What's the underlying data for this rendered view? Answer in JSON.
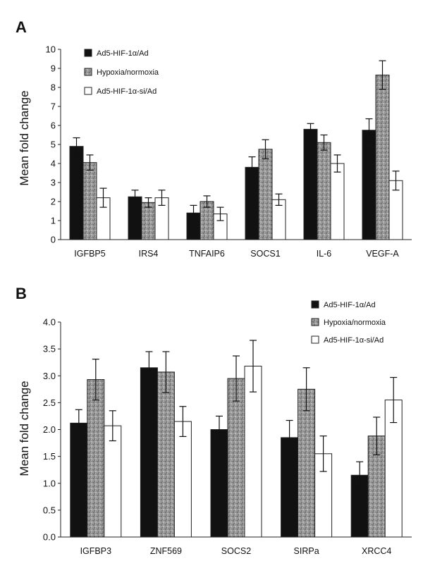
{
  "chart_data": [
    {
      "type": "bar",
      "panel_label": "A",
      "ylabel": "Mean fold change",
      "ylim": [
        0,
        10
      ],
      "yticks": [
        "0",
        "1",
        "2",
        "3",
        "4",
        "5",
        "6",
        "7",
        "8",
        "9",
        "10"
      ],
      "categories": [
        "IGFBP5",
        "IRS4",
        "TNFAIP6",
        "SOCS1",
        "IL-6",
        "VEGF-A"
      ],
      "legend_position": "top-left",
      "series": [
        {
          "name": "Ad5-HIF-1α/Ad",
          "color": "#111111",
          "pattern": "solid",
          "values": [
            4.9,
            2.25,
            1.4,
            3.8,
            5.8,
            5.75
          ],
          "errors": [
            0.45,
            0.35,
            0.4,
            0.55,
            0.3,
            0.6
          ]
        },
        {
          "name": "Hypoxia/normoxia",
          "color": "#8a8a8a",
          "pattern": "speckled",
          "values": [
            4.05,
            1.95,
            2.0,
            4.75,
            5.1,
            8.65
          ],
          "errors": [
            0.4,
            0.25,
            0.3,
            0.5,
            0.4,
            0.75
          ]
        },
        {
          "name": "Ad5-HIF-1α-si/Ad",
          "color": "#ffffff",
          "pattern": "solid",
          "values": [
            2.2,
            2.2,
            1.35,
            2.1,
            4.0,
            3.1
          ],
          "errors": [
            0.5,
            0.4,
            0.35,
            0.3,
            0.45,
            0.5
          ]
        }
      ]
    },
    {
      "type": "bar",
      "panel_label": "B",
      "ylabel": "Mean fold change",
      "ylim": [
        0,
        4
      ],
      "yticks": [
        "0.0",
        "0.5",
        "1.0",
        "1.5",
        "2.0",
        "2.5",
        "3.0",
        "3.5",
        "4.0"
      ],
      "categories": [
        "IGFBP3",
        "ZNF569",
        "SOCS2",
        "SIRPa",
        "XRCC4"
      ],
      "legend_position": "top-right",
      "series": [
        {
          "name": "Ad5-HIF-1α/Ad",
          "color": "#111111",
          "pattern": "solid",
          "values": [
            2.12,
            3.15,
            2.0,
            1.85,
            1.15
          ],
          "errors": [
            0.25,
            0.3,
            0.25,
            0.32,
            0.25
          ]
        },
        {
          "name": "Hypoxia/normoxia",
          "color": "#8a8a8a",
          "pattern": "speckled",
          "values": [
            2.93,
            3.07,
            2.95,
            2.75,
            1.88
          ],
          "errors": [
            0.38,
            0.38,
            0.42,
            0.4,
            0.35
          ]
        },
        {
          "name": "Ad5-HIF-1α-si/Ad",
          "color": "#ffffff",
          "pattern": "solid",
          "values": [
            2.07,
            2.15,
            3.18,
            1.55,
            2.55
          ],
          "errors": [
            0.28,
            0.28,
            0.48,
            0.33,
            0.42
          ]
        }
      ]
    }
  ]
}
